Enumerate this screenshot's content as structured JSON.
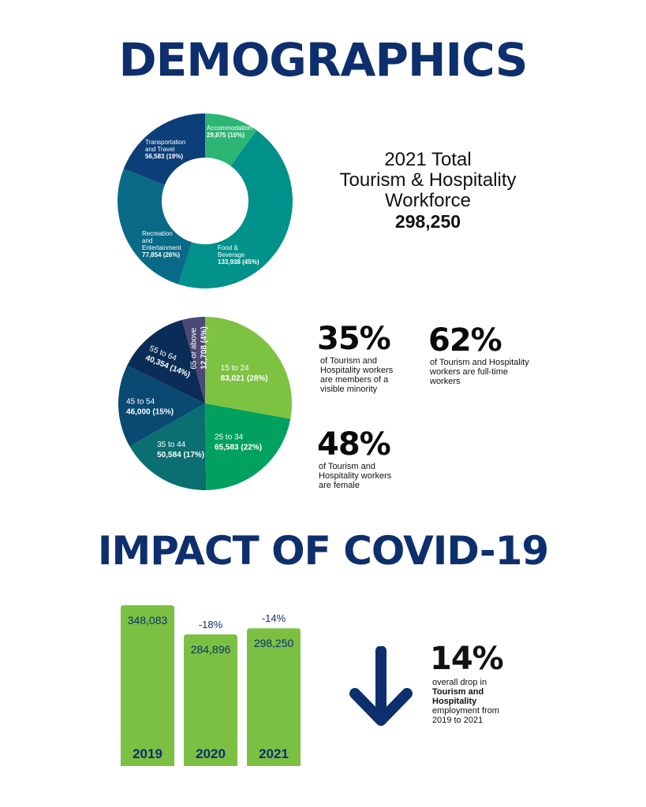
{
  "headings": {
    "demographics": "DEMOGRAPHICS",
    "covid": "IMPACT OF COVID-19"
  },
  "workforce": {
    "line1": "2021 Total",
    "line2": "Tourism & Hospitality",
    "line3": "Workforce",
    "total": "298,250"
  },
  "stats": {
    "minority": {
      "value": "35%",
      "desc": "of Tourism and Hospitality workers are members of a visible minority"
    },
    "fulltime": {
      "value": "62%",
      "desc": "of Tourism and Hospitality workers are full-time workers"
    },
    "female": {
      "value": "48%",
      "desc": "of Tourism and Hospitality workers are female"
    }
  },
  "drop": {
    "value": "14%",
    "desc_pre": "overall drop in",
    "desc_bold": "Tourism and Hospitality",
    "desc_post": "employment from 2019 to 2021"
  },
  "colors": {
    "navy": "#0d2f6e",
    "green_bar": "#7bc043"
  },
  "chart_data": [
    {
      "type": "pie",
      "variant": "donut",
      "slices": [
        {
          "label": "Accommodation",
          "value": 29875,
          "value_label": "29,875 (10%)",
          "color": "#2bb673"
        },
        {
          "label": "Food & Beverage",
          "value": 133938,
          "value_label": "133,938 (45%)",
          "color": "#00918a"
        },
        {
          "label": "Recreation and Entertainment",
          "value": 77854,
          "value_label": "77,854 (26%)",
          "color": "#096a88"
        },
        {
          "label": "Transportation and Travel",
          "value": 56583,
          "value_label": "56,583 (19%)",
          "color": "#0c3e78"
        }
      ]
    },
    {
      "type": "pie",
      "slices": [
        {
          "label": "15 to 24",
          "value": 83021,
          "value_label": "83,021 (28%)",
          "color": "#7ec242"
        },
        {
          "label": "25 to 34",
          "value": 65583,
          "value_label": "65,583 (22%)",
          "color": "#00a15f"
        },
        {
          "label": "35 to 44",
          "value": 50584,
          "value_label": "50,584 (17%)",
          "color": "#0b6e70"
        },
        {
          "label": "45 to 54",
          "value": 46000,
          "value_label": "46,000 (15%)",
          "color": "#0a4a72"
        },
        {
          "label": "55 to 64",
          "value": 40354,
          "value_label": "40,354 (14%)",
          "color": "#0b2c57"
        },
        {
          "label": "65 or above",
          "value": 12708,
          "value_label": "12,708 (4%)",
          "color": "#4c4a74"
        }
      ]
    },
    {
      "type": "bar",
      "categories": [
        "2019",
        "2020",
        "2021"
      ],
      "values": [
        348083,
        284896,
        298250
      ],
      "value_labels": [
        "348,083",
        "284,896",
        "298,250"
      ],
      "change_labels": [
        "",
        "-18%",
        "-14%"
      ]
    }
  ]
}
